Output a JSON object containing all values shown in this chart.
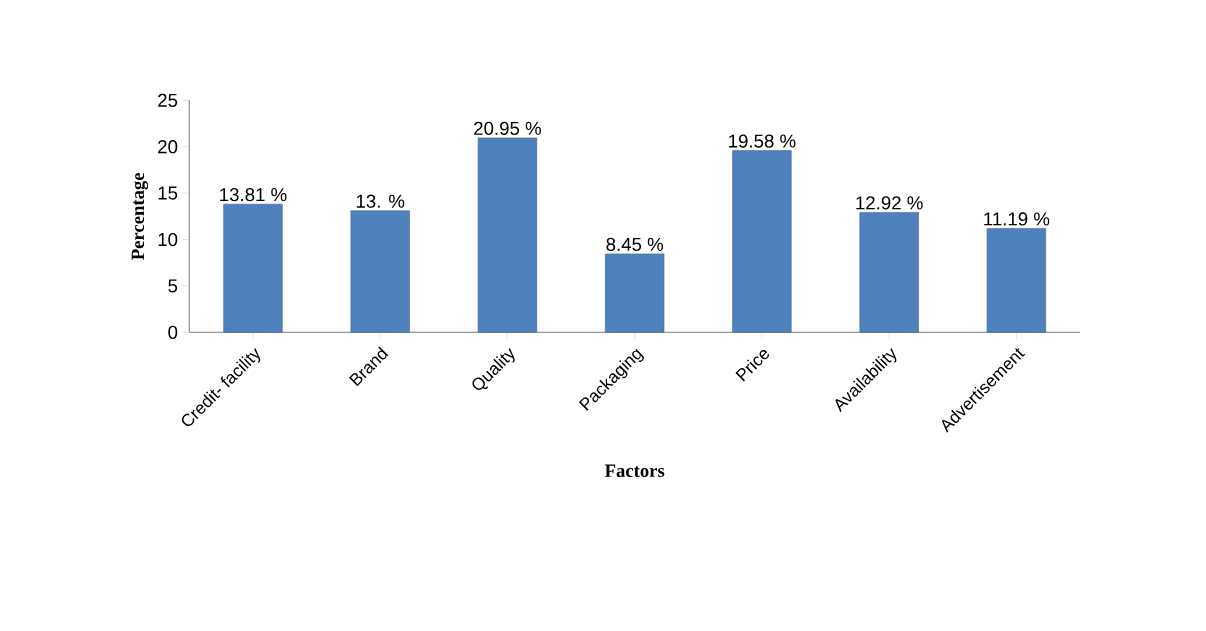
{
  "chart_data": {
    "type": "bar",
    "xlabel": "Factors",
    "ylabel": "Percentage",
    "categories": [
      "Credit- facility",
      "Brand",
      "Quality",
      "Packaging",
      "Price",
      "Availability",
      "Advertisement"
    ],
    "values": [
      13.81,
      13.1,
      20.95,
      8.45,
      19.58,
      12.92,
      11.19
    ],
    "value_labels": [
      "13.81 %",
      "13.   %",
      "20.95 %",
      "8.45 %",
      "19.58 %",
      "12.92 %",
      "11.19 %"
    ],
    "color": "#4f81bd",
    "ylim": [
      0,
      25
    ],
    "yticks": [
      0,
      5,
      10,
      15,
      20,
      25
    ],
    "grid": false
  }
}
